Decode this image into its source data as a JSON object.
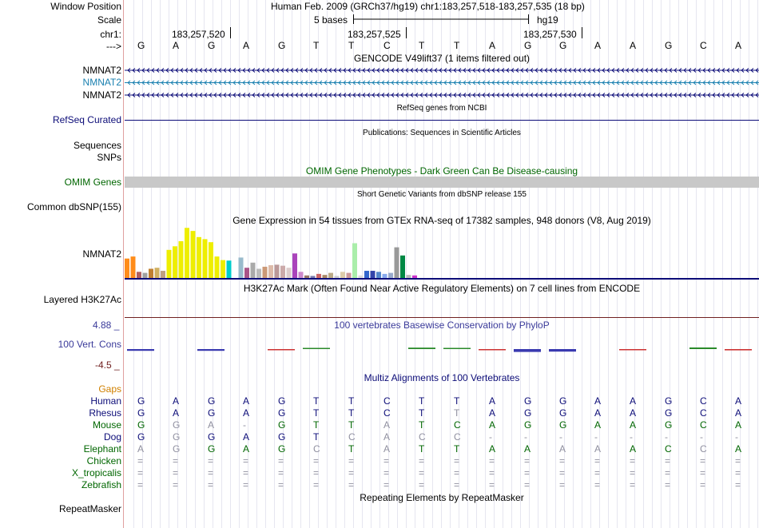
{
  "header": {
    "window_position_label": "Window Position",
    "scale_label": "Scale",
    "chr_label": "chr1:",
    "strand_label": "--->",
    "assembly_text": "Human Feb. 2009 (GRCh37/hg19)   chr1:183,257,518-183,257,535 (18 bp)",
    "scale_text": "5 bases",
    "db": "hg19",
    "ticks": [
      "183,257,520",
      "183,257,525",
      "183,257,530"
    ],
    "bases": [
      "G",
      "A",
      "G",
      "A",
      "G",
      "T",
      "T",
      "C",
      "T",
      "T",
      "A",
      "G",
      "G",
      "A",
      "A",
      "G",
      "C",
      "A"
    ]
  },
  "tracks": {
    "gencode": {
      "title": "GENCODE V49lift37 (1 items filtered out)",
      "genes": [
        {
          "name": "NMNAT2",
          "color": "#0c0c78"
        },
        {
          "name": "NMNAT2",
          "color": "#1a80b0"
        },
        {
          "name": "NMNAT2",
          "color": "#0c0c78"
        }
      ]
    },
    "refseq": {
      "title": "RefSeq genes from NCBI",
      "label": "RefSeq Curated"
    },
    "publications": {
      "title": "Publications: Sequences in Scientific Articles",
      "labels": [
        "Sequences",
        "SNPs"
      ]
    },
    "omim": {
      "title": "OMIM Gene Phenotypes - Dark Green Can Be Disease-causing",
      "label": "OMIM Genes"
    },
    "dbsnp": {
      "title": "Short Genetic Variants from dbSNP release 155",
      "label": "Common dbSNP(155)"
    },
    "gtex": {
      "title": "Gene Expression in 54 tissues from GTEx RNA-seq of 17382 samples, 948 donors (V8, Aug 2019)",
      "label": "NMNAT2",
      "bars": [
        {
          "v": 0.38,
          "c": "#ff8c1a"
        },
        {
          "v": 0.42,
          "c": "#ff8c1a"
        },
        {
          "v": 0.12,
          "c": "#b06060"
        },
        {
          "v": 0.1,
          "c": "#a0a0a0"
        },
        {
          "v": 0.18,
          "c": "#c08030"
        },
        {
          "v": 0.2,
          "c": "#d0b060"
        },
        {
          "v": 0.14,
          "c": "#c0a080"
        },
        {
          "v": 0.55,
          "c": "#eeee00"
        },
        {
          "v": 0.62,
          "c": "#eeee00"
        },
        {
          "v": 0.72,
          "c": "#eeee00"
        },
        {
          "v": 0.98,
          "c": "#eeee00"
        },
        {
          "v": 0.92,
          "c": "#eeee00"
        },
        {
          "v": 0.8,
          "c": "#eeee00"
        },
        {
          "v": 0.76,
          "c": "#eeee00"
        },
        {
          "v": 0.7,
          "c": "#eeee00"
        },
        {
          "v": 0.42,
          "c": "#eeee00"
        },
        {
          "v": 0.35,
          "c": "#eeee00"
        },
        {
          "v": 0.34,
          "c": "#00cccc"
        },
        {
          "v": 0.05,
          "c": "#ffffff"
        },
        {
          "v": 0.4,
          "c": "#99bbcc"
        },
        {
          "v": 0.2,
          "c": "#aa5588"
        },
        {
          "v": 0.3,
          "c": "#aaaaaa"
        },
        {
          "v": 0.18,
          "c": "#bbbbbb"
        },
        {
          "v": 0.22,
          "c": "#cc9977"
        },
        {
          "v": 0.25,
          "c": "#ddbbaa"
        },
        {
          "v": 0.26,
          "c": "#bb9999"
        },
        {
          "v": 0.24,
          "c": "#ccaaaa"
        },
        {
          "v": 0.2,
          "c": "#ddcccc"
        },
        {
          "v": 0.48,
          "c": "#aa44bb"
        },
        {
          "v": 0.12,
          "c": "#cc88cc"
        },
        {
          "v": 0.05,
          "c": "#997766"
        },
        {
          "v": 0.04,
          "c": "#7777aa"
        },
        {
          "v": 0.08,
          "c": "#cc6666"
        },
        {
          "v": 0.06,
          "c": "#aa8866"
        },
        {
          "v": 0.1,
          "c": "#bbaa88"
        },
        {
          "v": 0.04,
          "c": "#cccccc"
        },
        {
          "v": 0.12,
          "c": "#ddccaa"
        },
        {
          "v": 0.1,
          "c": "#cc9999"
        },
        {
          "v": 0.68,
          "c": "#aaeeaa"
        },
        {
          "v": 0.05,
          "c": "#dddddd"
        },
        {
          "v": 0.14,
          "c": "#3366cc"
        },
        {
          "v": 0.14,
          "c": "#3344aa"
        },
        {
          "v": 0.12,
          "c": "#5588cc"
        },
        {
          "v": 0.08,
          "c": "#88aaee"
        },
        {
          "v": 0.1,
          "c": "#99aacc"
        },
        {
          "v": 0.6,
          "c": "#999999"
        },
        {
          "v": 0.44,
          "c": "#008844"
        },
        {
          "v": 0.06,
          "c": "#bbbbbb"
        },
        {
          "v": 0.05,
          "c": "#cc33cc"
        }
      ]
    },
    "h3k27ac": {
      "title": "H3K27Ac Mark (Often Found Near Active Regulatory Elements) on 7 cell lines from ENCODE",
      "label": "Layered H3K27Ac"
    },
    "phylop": {
      "title": "100 vertebrates Basewise Conservation by PhyloP",
      "label": "100 Vert. Cons",
      "max": "4.88 _",
      "min": "-4.5 _",
      "scores": [
        -0.55,
        0,
        -0.55,
        0,
        -0.25,
        0.05,
        0,
        0,
        0.45,
        0.1,
        -0.2,
        -0.9,
        -0.8,
        0,
        -0.3,
        0,
        0.5,
        -0.4
      ]
    },
    "multiz": {
      "title": "Multiz Alignments of 100 Vertebrates",
      "gaps_label": "Gaps",
      "species": [
        {
          "name": "Human",
          "color": "#0c0c78",
          "seq": "GAGAGTTCTTAGGAAGCA",
          "dim": "000000000000000000"
        },
        {
          "name": "Rhesus",
          "color": "#0c0c78",
          "seq": "GAGAGTTCTTAGGAAGCA",
          "dim": "000000000100000000"
        },
        {
          "name": "Mouse",
          "color": "#006600",
          "seq": "GGA-GTTATCAGGAAGCA",
          "dim": "011100010000000000"
        },
        {
          "name": "Dog",
          "color": "#0c0c78",
          "seq": "GGGAGTCACC--------",
          "dim": "010000111111111111"
        },
        {
          "name": "Elephant",
          "color": "#006600",
          "seq": "AGGAGCTATTAAAAACCA",
          "dim": "110001010000110010"
        },
        {
          "name": "Chicken",
          "color": "#006600",
          "seq": "==================",
          "dim": "111111111111111111"
        },
        {
          "name": "X_tropicalis",
          "color": "#006600",
          "seq": "==================",
          "dim": "111111111111111111"
        },
        {
          "name": "Zebrafish",
          "color": "#006600",
          "seq": "==================",
          "dim": "111111111111111111"
        }
      ]
    },
    "repeatmasker": {
      "title": "Repeating Elements by RepeatMasker",
      "label": "RepeatMasker"
    }
  },
  "colors": {
    "navy": "#0c0c78",
    "omim_green": "#006600",
    "phylop_blue": "#3a3a9a",
    "gray_bar": "#c8c8c8",
    "gaps_orange": "#d08000",
    "h3k27_line": "#702020",
    "min_red": "#702020"
  }
}
